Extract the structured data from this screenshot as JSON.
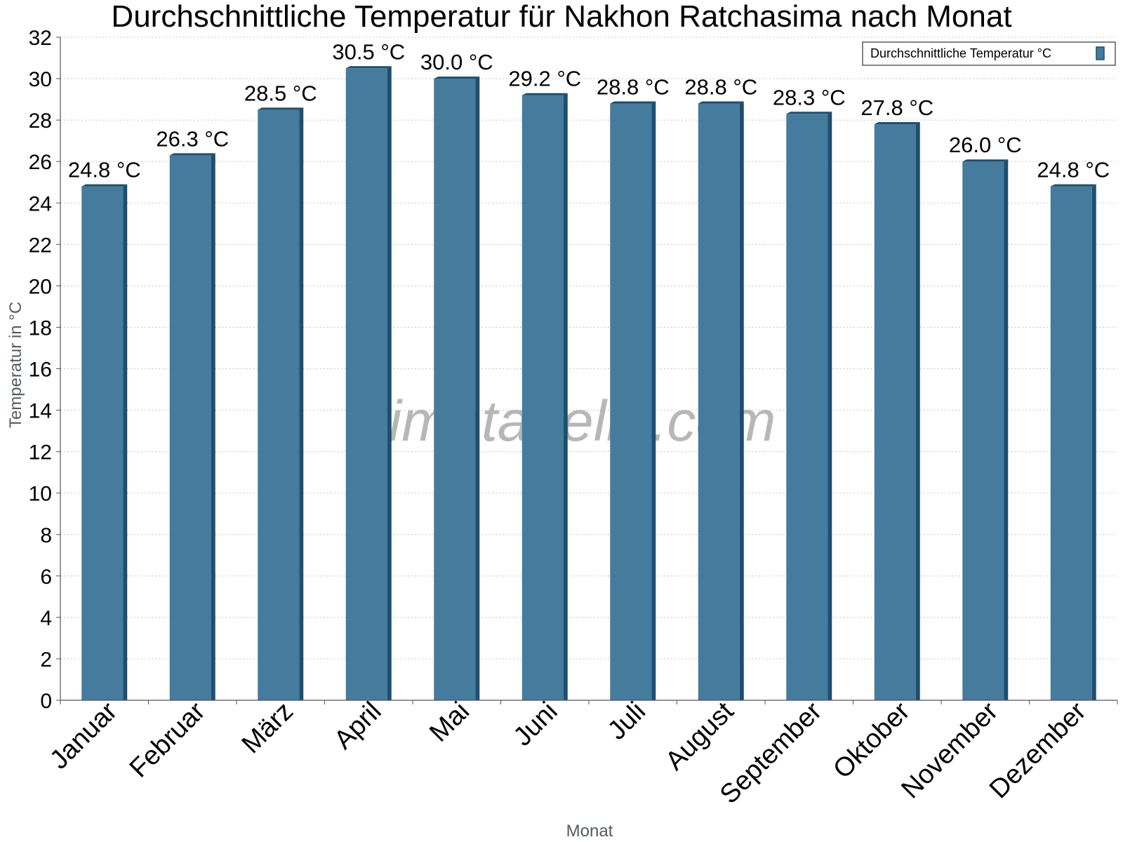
{
  "chart_data": {
    "type": "bar",
    "title": "Durchschnittliche Temperatur für Nakhon Ratchasima nach Monat",
    "xlabel": "Monat",
    "ylabel": "Temperatur in °C",
    "categories": [
      "Januar",
      "Februar",
      "März",
      "April",
      "Mai",
      "Juni",
      "Juli",
      "August",
      "September",
      "Oktober",
      "November",
      "Dezember"
    ],
    "series": [
      {
        "name": "Durchschnittliche Temperatur °C",
        "values": [
          24.8,
          26.3,
          28.5,
          30.5,
          30.0,
          29.2,
          28.8,
          28.8,
          28.3,
          27.8,
          26.0,
          24.8
        ],
        "labels": [
          "24.8 °C",
          "26.3 °C",
          "28.5 °C",
          "30.5 °C",
          "30.0 °C",
          "29.2 °C",
          "28.8 °C",
          "28.8 °C",
          "28.3 °C",
          "27.8 °C",
          "26.0 °C",
          "24.8 °C"
        ]
      }
    ],
    "ylim": [
      0,
      32
    ],
    "yticks": [
      0,
      2,
      4,
      6,
      8,
      10,
      12,
      14,
      16,
      18,
      20,
      22,
      24,
      26,
      28,
      30,
      32
    ],
    "grid": true,
    "legend_position": "top-right",
    "watermark": "klimatabelle.com",
    "colors": {
      "bar_face": "#457b9d",
      "bar_side": "#1d4e6e",
      "grid": "#c8c8c8",
      "axis": "#555555"
    }
  }
}
